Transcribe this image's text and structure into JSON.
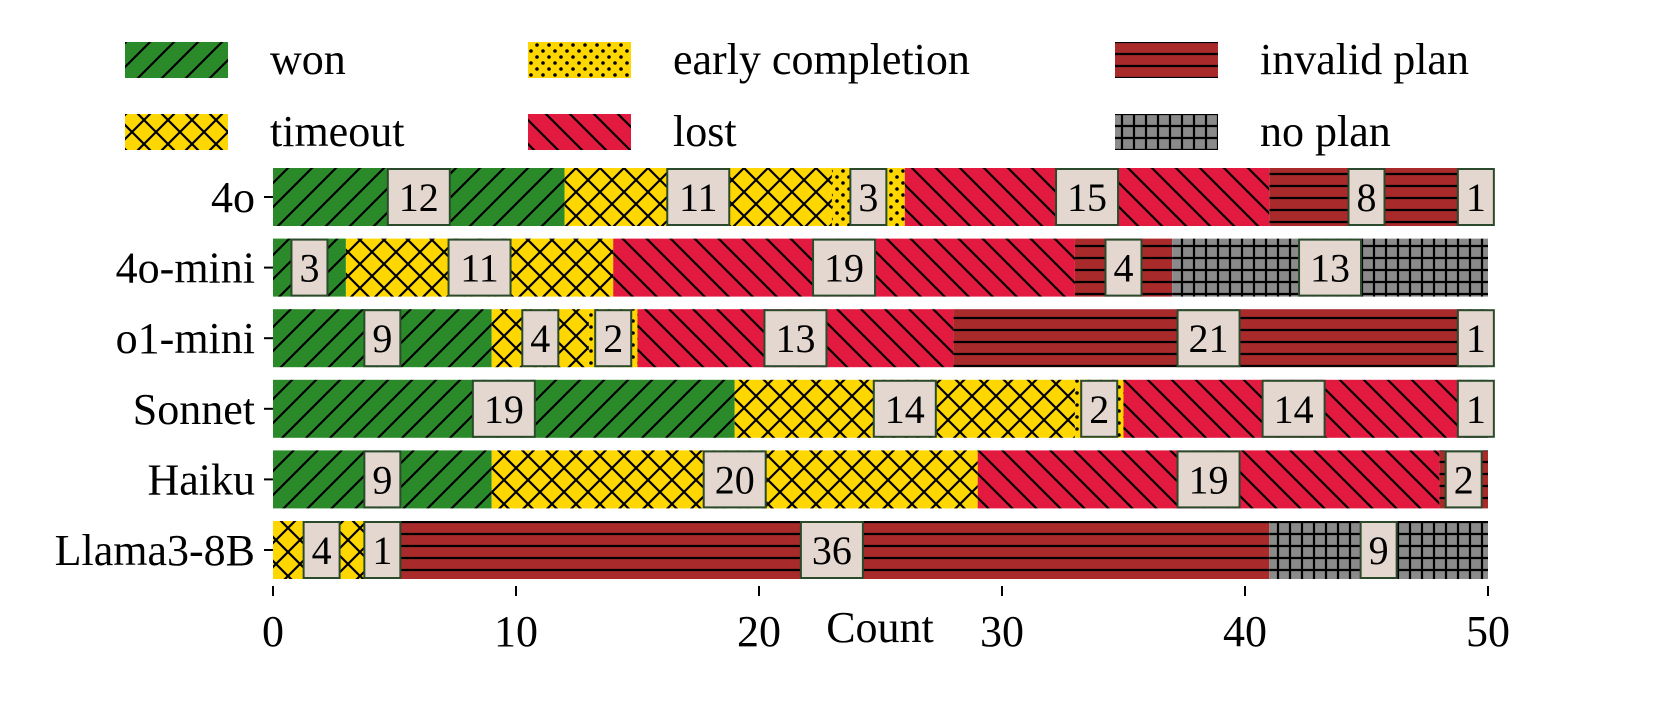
{
  "chart_data": {
    "type": "bar",
    "orientation": "horizontal",
    "stacked": true,
    "title": "",
    "xlabel": "Count",
    "ylabel": "",
    "xlim": [
      0,
      50
    ],
    "xticks": [
      0,
      10,
      20,
      30,
      40,
      50
    ],
    "grid": false,
    "legend_position": "top",
    "categories": [
      "4o",
      "4o-mini",
      "o1-mini",
      "Sonnet",
      "Haiku",
      "Llama3-8B"
    ],
    "series": [
      {
        "name": "won",
        "color": "#2a8a2a",
        "pattern": "diagonal",
        "values": [
          12,
          3,
          9,
          19,
          9,
          0
        ]
      },
      {
        "name": "timeout",
        "color": "#ffd700",
        "pattern": "crosshatch",
        "values": [
          11,
          11,
          4,
          14,
          20,
          4
        ]
      },
      {
        "name": "early completion",
        "color": "#ffd700",
        "pattern": "dots",
        "values": [
          3,
          0,
          2,
          2,
          0,
          1
        ]
      },
      {
        "name": "lost",
        "color": "#e31a3f",
        "pattern": "backdiagonal",
        "values": [
          15,
          19,
          13,
          14,
          19,
          0
        ]
      },
      {
        "name": "invalid plan",
        "color": "#a82a2a",
        "pattern": "horizontal",
        "values": [
          8,
          4,
          21,
          0,
          2,
          36
        ]
      },
      {
        "name": "no plan",
        "color": "#8a8a8a",
        "pattern": "grid",
        "values": [
          1,
          13,
          1,
          1,
          0,
          9
        ]
      }
    ]
  }
}
